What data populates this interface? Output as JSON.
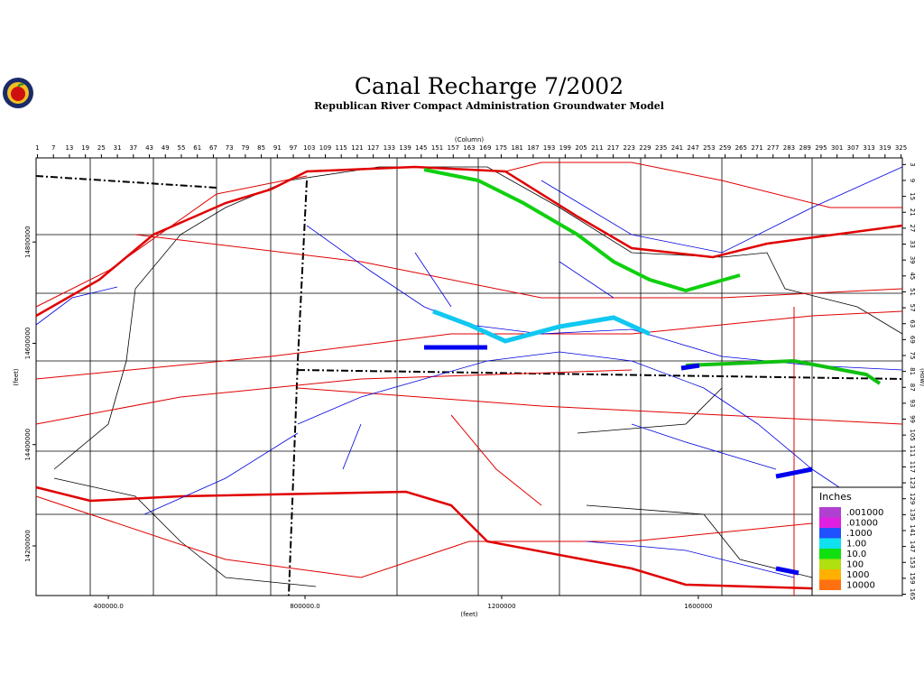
{
  "title": "Canal Recharge 7/2002",
  "subtitle": "Republican River Compact Administration Groundwater Model",
  "columns": {
    "label": "(Column)",
    "lim": [
      0.5,
      325.5
    ],
    "ticks": [
      1,
      7,
      13,
      19,
      25,
      31,
      37,
      43,
      49,
      55,
      61,
      67,
      73,
      79,
      85,
      91,
      97,
      103,
      109,
      115,
      121,
      127,
      133,
      139,
      145,
      151,
      157,
      163,
      169,
      175,
      181,
      187,
      193,
      199,
      205,
      211,
      217,
      223,
      229,
      235,
      241,
      247,
      253,
      259,
      265,
      271,
      277,
      283,
      289,
      295,
      301,
      307,
      313,
      319,
      325
    ]
  },
  "rows": {
    "label": "(Row)",
    "lim": [
      0.5,
      165.5
    ],
    "ticks": [
      3,
      9,
      15,
      21,
      27,
      33,
      39,
      45,
      51,
      57,
      63,
      69,
      75,
      81,
      87,
      93,
      99,
      105,
      111,
      117,
      123,
      129,
      135,
      141,
      147,
      153,
      159,
      165
    ]
  },
  "x_feet": {
    "label": "(feet)",
    "lim": [
      253000,
      2015000
    ],
    "ticks": [
      {
        "value": 400000,
        "label": "400000.0"
      },
      {
        "value": 800000,
        "label": "800000.0"
      },
      1200000,
      1600000
    ]
  },
  "y_feet": {
    "label": "(feet)",
    "lim": [
      14102000,
      14966000
    ],
    "ticks": [
      14800000,
      14600000,
      14400000,
      14200000
    ]
  },
  "legend": {
    "title": "Inches",
    "entries": [
      {
        "label": ".001000",
        "color": "#b040d0"
      },
      {
        "label": ".01000",
        "color": "#e020e0"
      },
      {
        "label": ".1000",
        "color": "#2050ff"
      },
      {
        "label": "1.00",
        "color": "#10e0f0"
      },
      {
        "label": "10.0",
        "color": "#10e010"
      },
      {
        "label": "100",
        "color": "#b0e010"
      },
      {
        "label": "1000",
        "color": "#ffb000"
      },
      {
        "label": "10000",
        "color": "#ff7010"
      }
    ]
  }
}
